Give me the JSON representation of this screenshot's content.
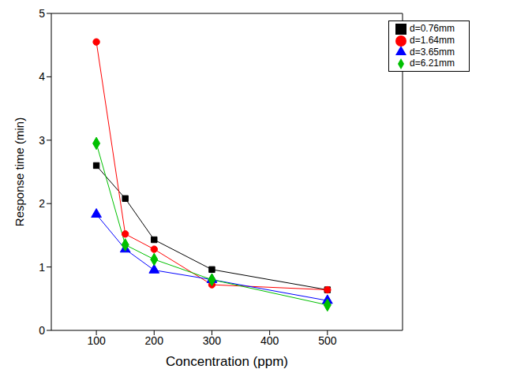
{
  "chart_data": {
    "type": "line",
    "x_label": "Concentration (ppm)",
    "y_label": "Response time (min)",
    "x": [
      100,
      150,
      200,
      300,
      500
    ],
    "series": [
      {
        "name": "d=0.76mm",
        "color": "#000000",
        "marker": "square",
        "values": [
          2.6,
          2.08,
          1.43,
          0.96,
          0.64
        ]
      },
      {
        "name": "d=1.64mm",
        "color": "#ff0000",
        "marker": "circle",
        "values": [
          4.55,
          1.52,
          1.28,
          0.72,
          0.64
        ]
      },
      {
        "name": "d=3.65mm",
        "color": "#0000ff",
        "marker": "triangle",
        "values": [
          1.83,
          1.28,
          0.95,
          0.8,
          0.47
        ]
      },
      {
        "name": "d=6.21mm",
        "color": "#00c000",
        "marker": "diamond",
        "values": [
          2.95,
          1.35,
          1.12,
          0.8,
          0.4
        ]
      }
    ],
    "xlim": [
      22,
      630
    ],
    "xticks": [
      100,
      200,
      300,
      400,
      500
    ],
    "ylim": [
      0,
      5
    ],
    "yticks": [
      0,
      1,
      2,
      3,
      4,
      5
    ],
    "grid": false,
    "legend": "upper right"
  }
}
